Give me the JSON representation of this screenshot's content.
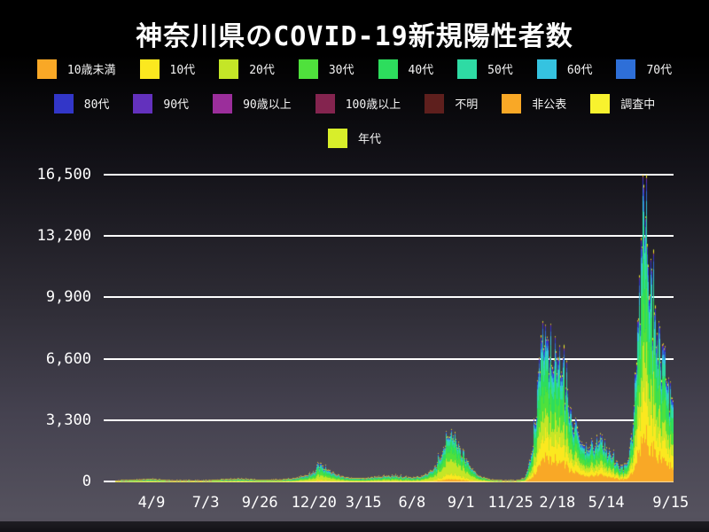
{
  "title": "神奈川県のCOVID-19新規陽性者数",
  "colors": {
    "background_top": "#000000",
    "background_bottom": "#55525e",
    "gridline": "#ffffff",
    "text": "#ffffff"
  },
  "chart_data": {
    "type": "area",
    "variant": "stacked-daily-by-age",
    "title": "神奈川県のCOVID-19新規陽性者数",
    "xlabel": "",
    "ylabel": "",
    "ylim": [
      0,
      16500
    ],
    "grid": "horizontal-white-behind-data",
    "legend_position": "top",
    "y_ticks": [
      {
        "label": "0",
        "value": 0
      },
      {
        "label": "3,300",
        "value": 3300
      },
      {
        "label": "6,600",
        "value": 6600
      },
      {
        "label": "9,900",
        "value": 9900
      },
      {
        "label": "13,200",
        "value": 13200
      },
      {
        "label": "16,500",
        "value": 16500
      }
    ],
    "x_ticks": [
      {
        "label": "4/9",
        "t": 0.084
      },
      {
        "label": "7/3",
        "t": 0.179
      },
      {
        "label": "9/26",
        "t": 0.274
      },
      {
        "label": "12/20",
        "t": 0.369
      },
      {
        "label": "3/15",
        "t": 0.456
      },
      {
        "label": "6/8",
        "t": 0.541
      },
      {
        "label": "9/1",
        "t": 0.627
      },
      {
        "label": "11/25",
        "t": 0.714
      },
      {
        "label": "2/18",
        "t": 0.796
      },
      {
        "label": "5/14",
        "t": 0.882
      },
      {
        "label": "9/15",
        "t": 0.995
      }
    ],
    "series": [
      {
        "key": "under10",
        "name": "10歳未満",
        "color": "#f9a826"
      },
      {
        "key": "teens",
        "name": "10代",
        "color": "#fbe81f"
      },
      {
        "key": "twenties",
        "name": "20代",
        "color": "#c4e627"
      },
      {
        "key": "thirties",
        "name": "30代",
        "color": "#4fe13c"
      },
      {
        "key": "forties",
        "name": "40代",
        "color": "#2ddd5d"
      },
      {
        "key": "fifties",
        "name": "50代",
        "color": "#2edba4"
      },
      {
        "key": "sixties",
        "name": "60代",
        "color": "#35c3e0"
      },
      {
        "key": "seventies",
        "name": "70代",
        "color": "#2e6fd8"
      },
      {
        "key": "eighties",
        "name": "80代",
        "color": "#3236c8"
      },
      {
        "key": "nineties",
        "name": "90代",
        "color": "#6331bd"
      },
      {
        "key": "over90",
        "name": "90歳以上",
        "color": "#9b2e9b"
      },
      {
        "key": "over100",
        "name": "100歳以上",
        "color": "#84244f"
      },
      {
        "key": "unknown",
        "name": "不明",
        "color": "#5e1f1d"
      },
      {
        "key": "undisclosed",
        "name": "非公表",
        "color": "#f9a826"
      },
      {
        "key": "investigating",
        "name": "調査中",
        "color": "#f8f22e"
      },
      {
        "key": "age-generic",
        "name": "年代",
        "color": "#d8ee2a"
      }
    ],
    "legend_rows": [
      [
        0,
        1,
        2,
        3,
        4,
        5,
        6,
        7
      ],
      [
        8,
        9,
        10,
        11,
        12,
        13,
        14
      ],
      [
        15
      ]
    ],
    "data_start_t": 0.02,
    "envelope_daily_total": [
      [
        0.0,
        0
      ],
      [
        0.01,
        5
      ],
      [
        0.02,
        40
      ],
      [
        0.055,
        90
      ],
      [
        0.084,
        130
      ],
      [
        0.11,
        60
      ],
      [
        0.15,
        25
      ],
      [
        0.179,
        45
      ],
      [
        0.21,
        120
      ],
      [
        0.24,
        145
      ],
      [
        0.274,
        80
      ],
      [
        0.31,
        95
      ],
      [
        0.34,
        190
      ],
      [
        0.36,
        360
      ],
      [
        0.369,
        480
      ],
      [
        0.378,
        980
      ],
      [
        0.39,
        700
      ],
      [
        0.41,
        330
      ],
      [
        0.435,
        180
      ],
      [
        0.456,
        170
      ],
      [
        0.48,
        230
      ],
      [
        0.5,
        300
      ],
      [
        0.515,
        275
      ],
      [
        0.53,
        230
      ],
      [
        0.545,
        205
      ],
      [
        0.56,
        290
      ],
      [
        0.58,
        620
      ],
      [
        0.595,
        1500
      ],
      [
        0.605,
        2750
      ],
      [
        0.615,
        2350
      ],
      [
        0.627,
        1650
      ],
      [
        0.645,
        700
      ],
      [
        0.66,
        260
      ],
      [
        0.68,
        95
      ],
      [
        0.7,
        60
      ],
      [
        0.714,
        50
      ],
      [
        0.728,
        65
      ],
      [
        0.74,
        210
      ],
      [
        0.752,
        1500
      ],
      [
        0.76,
        4300
      ],
      [
        0.768,
        7800
      ],
      [
        0.775,
        8300
      ],
      [
        0.782,
        7100
      ],
      [
        0.79,
        6200
      ],
      [
        0.798,
        6500
      ],
      [
        0.806,
        5700
      ],
      [
        0.815,
        4300
      ],
      [
        0.825,
        3200
      ],
      [
        0.838,
        2200
      ],
      [
        0.85,
        1650
      ],
      [
        0.862,
        1950
      ],
      [
        0.872,
        2150
      ],
      [
        0.882,
        1800
      ],
      [
        0.893,
        1300
      ],
      [
        0.903,
        900
      ],
      [
        0.913,
        650
      ],
      [
        0.922,
        1250
      ],
      [
        0.93,
        3300
      ],
      [
        0.938,
        7600
      ],
      [
        0.944,
        12200
      ],
      [
        0.949,
        16000
      ],
      [
        0.955,
        13200
      ],
      [
        0.961,
        10700
      ],
      [
        0.968,
        8800
      ],
      [
        0.976,
        7300
      ],
      [
        0.985,
        5900
      ],
      [
        0.993,
        5000
      ],
      [
        1.0,
        4550
      ]
    ],
    "share_keyframes": [
      {
        "t": 0.0,
        "shares": [
          0.035,
          0.075,
          0.25,
          0.185,
          0.155,
          0.125,
          0.065,
          0.048,
          0.032,
          0.013,
          0.002,
          0.001,
          0.003,
          0.002,
          0.004,
          0.005
        ]
      },
      {
        "t": 0.55,
        "shares": [
          0.04,
          0.08,
          0.26,
          0.19,
          0.155,
          0.115,
          0.06,
          0.042,
          0.028,
          0.012,
          0.002,
          0.001,
          0.003,
          0.002,
          0.005,
          0.005
        ]
      },
      {
        "t": 0.62,
        "shares": [
          0.055,
          0.105,
          0.3,
          0.205,
          0.165,
          0.095,
          0.035,
          0.016,
          0.008,
          0.004,
          0.001,
          0.0005,
          0.002,
          0.002,
          0.006,
          0.005
        ]
      },
      {
        "t": 0.7,
        "shares": [
          0.05,
          0.09,
          0.27,
          0.19,
          0.16,
          0.1,
          0.05,
          0.03,
          0.02,
          0.01,
          0.002,
          0.001,
          0.003,
          0.002,
          0.005,
          0.005
        ]
      },
      {
        "t": 0.77,
        "shares": [
          0.165,
          0.145,
          0.145,
          0.15,
          0.155,
          0.095,
          0.055,
          0.038,
          0.025,
          0.012,
          0.002,
          0.001,
          0.002,
          0.004,
          0.006,
          0.002
        ]
      },
      {
        "t": 1.0,
        "shares": [
          0.17,
          0.15,
          0.14,
          0.15,
          0.16,
          0.1,
          0.055,
          0.035,
          0.022,
          0.01,
          0.002,
          0.001,
          0.002,
          0.004,
          0.006,
          0.002
        ]
      }
    ],
    "bursty_series_indices": [
      10,
      11,
      12,
      13,
      14,
      15
    ],
    "noise": {
      "weekly_period": 4.7,
      "weekly_amp": 0.11,
      "jitter_amp": 0.15,
      "spike_chance": 0.07,
      "spike_mult": 1.22,
      "min_total": 55
    },
    "notable_peaks": [
      {
        "near_x_label": "12/20",
        "approx_daily_total": 1000
      },
      {
        "near_x_label": "9/1",
        "approx_daily_total": 2800
      },
      {
        "near_x_label": "2/18",
        "approx_daily_total": 8500
      },
      {
        "near_x_label": "9/15",
        "approx_daily_total": 16500
      }
    ],
    "value_at_right_edge": 4550
  }
}
